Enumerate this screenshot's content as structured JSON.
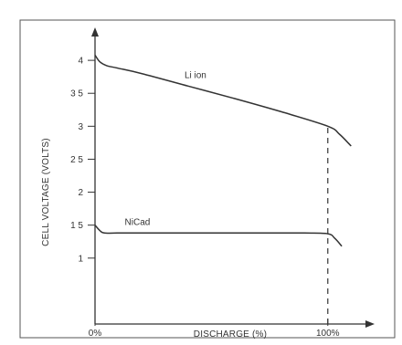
{
  "chart_data": {
    "type": "line",
    "title": "",
    "xlabel": "DISCHARGE (%)",
    "ylabel": "CELL VOLTAGE (VOLTS)",
    "xlim": [
      0,
      115
    ],
    "ylim": [
      0,
      4.5
    ],
    "grid": false,
    "legend": "none",
    "y_ticks": [
      {
        "value": 1,
        "label": "1"
      },
      {
        "value": 1.5,
        "label": "1 5"
      },
      {
        "value": 2,
        "label": "2"
      },
      {
        "value": 2.5,
        "label": "2 5"
      },
      {
        "value": 3,
        "label": "3"
      },
      {
        "value": 3.5,
        "label": "3 5"
      },
      {
        "value": 4,
        "label": "4"
      }
    ],
    "x_ticks": [
      {
        "value": 0,
        "label": "0%"
      },
      {
        "value": 100,
        "label": "100%"
      }
    ],
    "series": [
      {
        "name": "Li ion",
        "color": "#333333",
        "x": [
          0,
          2,
          5,
          10,
          20,
          40,
          60,
          80,
          100,
          105,
          110
        ],
        "y": [
          4.08,
          3.98,
          3.92,
          3.88,
          3.8,
          3.61,
          3.42,
          3.22,
          3.0,
          2.88,
          2.7
        ]
      },
      {
        "name": "NiCad",
        "color": "#333333",
        "x": [
          0,
          2,
          4,
          10,
          30,
          50,
          70,
          90,
          100,
          103,
          106
        ],
        "y": [
          1.5,
          1.42,
          1.38,
          1.38,
          1.38,
          1.38,
          1.38,
          1.38,
          1.37,
          1.3,
          1.18
        ]
      }
    ],
    "annotations": [
      {
        "type": "vertical-dashed",
        "x": 100,
        "y_from": 0,
        "y_to": 3.0
      }
    ]
  }
}
